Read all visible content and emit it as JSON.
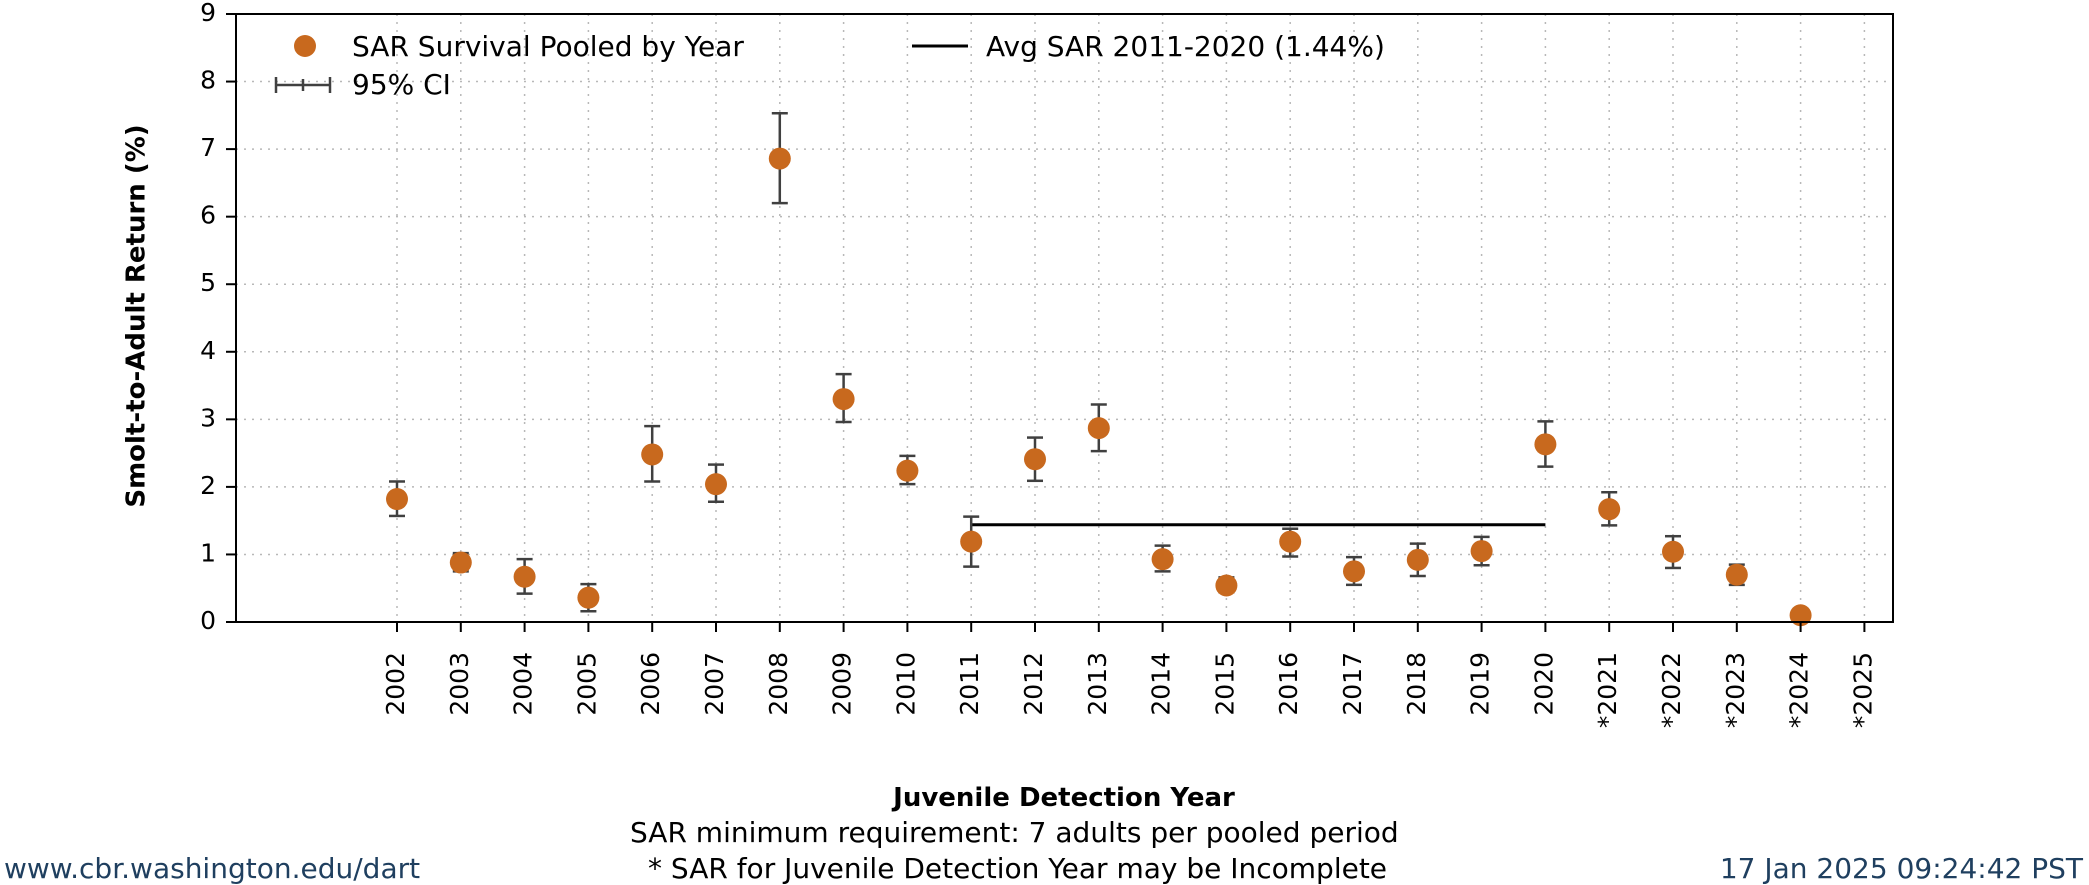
{
  "chart_data": {
    "type": "scatter",
    "categories": [
      "2002",
      "2003",
      "2004",
      "2005",
      "2006",
      "2007",
      "2008",
      "2009",
      "2010",
      "2011",
      "2012",
      "2013",
      "2014",
      "2015",
      "2016",
      "2017",
      "2018",
      "2019",
      "2020",
      "*2021",
      "*2022",
      "*2023",
      "*2024",
      "*2025"
    ],
    "series": [
      {
        "name": "SAR Survival Pooled by Year",
        "color": "#c8691e",
        "values": [
          1.82,
          0.88,
          0.67,
          0.36,
          2.48,
          2.04,
          6.86,
          3.3,
          2.24,
          1.19,
          2.41,
          2.87,
          0.93,
          0.54,
          1.19,
          0.75,
          0.92,
          1.05,
          2.63,
          1.67,
          1.04,
          0.7,
          0.1,
          null
        ],
        "ci_low": [
          1.57,
          0.75,
          0.42,
          0.16,
          2.08,
          1.78,
          6.2,
          2.96,
          2.04,
          0.82,
          2.09,
          2.53,
          0.75,
          0.44,
          0.97,
          0.55,
          0.68,
          0.84,
          2.3,
          1.43,
          0.8,
          0.55,
          0.05,
          null
        ],
        "ci_high": [
          2.08,
          1.02,
          0.93,
          0.56,
          2.9,
          2.33,
          7.53,
          3.67,
          2.46,
          1.56,
          2.73,
          3.22,
          1.13,
          0.66,
          1.38,
          0.96,
          1.16,
          1.26,
          2.97,
          1.92,
          1.27,
          0.85,
          0.15,
          null
        ]
      }
    ],
    "average_line": {
      "label": "Avg SAR 2011-2020 (1.44%)",
      "value": 1.44,
      "from": "2011",
      "to": "2020",
      "color": "#000000"
    },
    "ci_legend_label": "95% CI",
    "ylabel": "Smolt-to-Adult Return (%)",
    "xlabel": "Juvenile Detection Year",
    "ylim": [
      0,
      9
    ],
    "yticks": [
      0,
      1,
      2,
      3,
      4,
      5,
      6,
      7,
      8,
      9
    ],
    "grid": true,
    "legend_position": "top-left"
  },
  "notes": {
    "line1": "SAR minimum requirement: 7 adults per pooled period",
    "line2": "* SAR for Juvenile Detection Year may be Incomplete"
  },
  "footer": {
    "website": "www.cbr.washington.edu/dart",
    "timestamp": "17 Jan 2025 09:24:42 PST"
  }
}
